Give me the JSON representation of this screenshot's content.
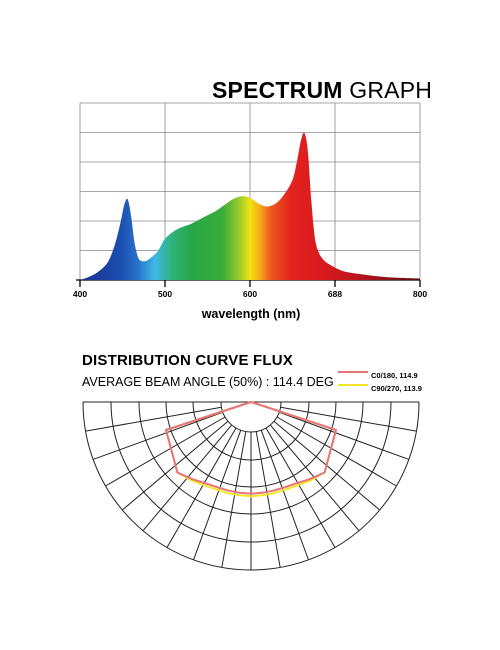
{
  "spectrum": {
    "title_bold": "SPECTRUM",
    "title_light": "GRAPH",
    "xlabel": "wavelength (nm)"
  },
  "flux": {
    "title": "DISTRIBUTION CURVE FLUX",
    "beam_angle": "AVERAGE BEAM ANGLE  (50%) : 114.4 DEG"
  },
  "chart_data": [
    {
      "type": "area",
      "title": "SPECTRUM GRAPH",
      "xlabel": "wavelength (nm)",
      "ylabel": "",
      "x_tick_labels": [
        "400",
        "500",
        "600",
        "688",
        "800"
      ],
      "xlim": [
        400,
        800
      ],
      "ylim": [
        0,
        1
      ],
      "grid": true,
      "series": [
        {
          "x": [
            400,
            410,
            420,
            430,
            436,
            442,
            448,
            452,
            456,
            460,
            464,
            468,
            472,
            478,
            485,
            492,
            500,
            510,
            520,
            530,
            540,
            550,
            560,
            570,
            580,
            590,
            600,
            610,
            620,
            630,
            640,
            650,
            655,
            660,
            664,
            668,
            672,
            676,
            680,
            686,
            695,
            710,
            730,
            760,
            800
          ],
          "y": [
            0.0,
            0.02,
            0.05,
            0.1,
            0.16,
            0.26,
            0.4,
            0.51,
            0.55,
            0.44,
            0.26,
            0.16,
            0.13,
            0.13,
            0.16,
            0.2,
            0.28,
            0.33,
            0.36,
            0.38,
            0.41,
            0.44,
            0.47,
            0.51,
            0.55,
            0.57,
            0.56,
            0.52,
            0.5,
            0.52,
            0.58,
            0.68,
            0.8,
            0.95,
            1.0,
            0.88,
            0.55,
            0.3,
            0.2,
            0.14,
            0.1,
            0.06,
            0.04,
            0.02,
            0.01
          ]
        }
      ]
    },
    {
      "type": "polar",
      "title": "DISTRIBUTION CURVE FLUX",
      "subtitle": "AVERAGE BEAM ANGLE  (50%) : 114.4 DEG",
      "grid": true,
      "series": [
        {
          "name": "C0/180, 114.9",
          "color": "#e8737a",
          "angles_deg": [
            -90,
            -60,
            -50,
            -40,
            -30,
            -20,
            -10,
            0,
            10,
            20,
            30,
            40,
            50,
            60,
            90
          ],
          "intensity": [
            1.0,
            1.0,
            0.9,
            0.82,
            0.78,
            0.76,
            0.75,
            0.75,
            0.75,
            0.76,
            0.78,
            0.82,
            0.9,
            1.0,
            1.0
          ]
        },
        {
          "name": "C90/270, 113.9",
          "color": "#f2e62a",
          "angles_deg": [
            -90,
            -60,
            -50,
            -40,
            -30,
            -20,
            -10,
            0,
            10,
            20,
            30,
            40,
            50,
            60,
            90
          ],
          "intensity": [
            1.0,
            1.0,
            0.92,
            0.85,
            0.81,
            0.79,
            0.78,
            0.78,
            0.78,
            0.79,
            0.81,
            0.85,
            0.92,
            1.0,
            1.0
          ]
        }
      ]
    }
  ]
}
